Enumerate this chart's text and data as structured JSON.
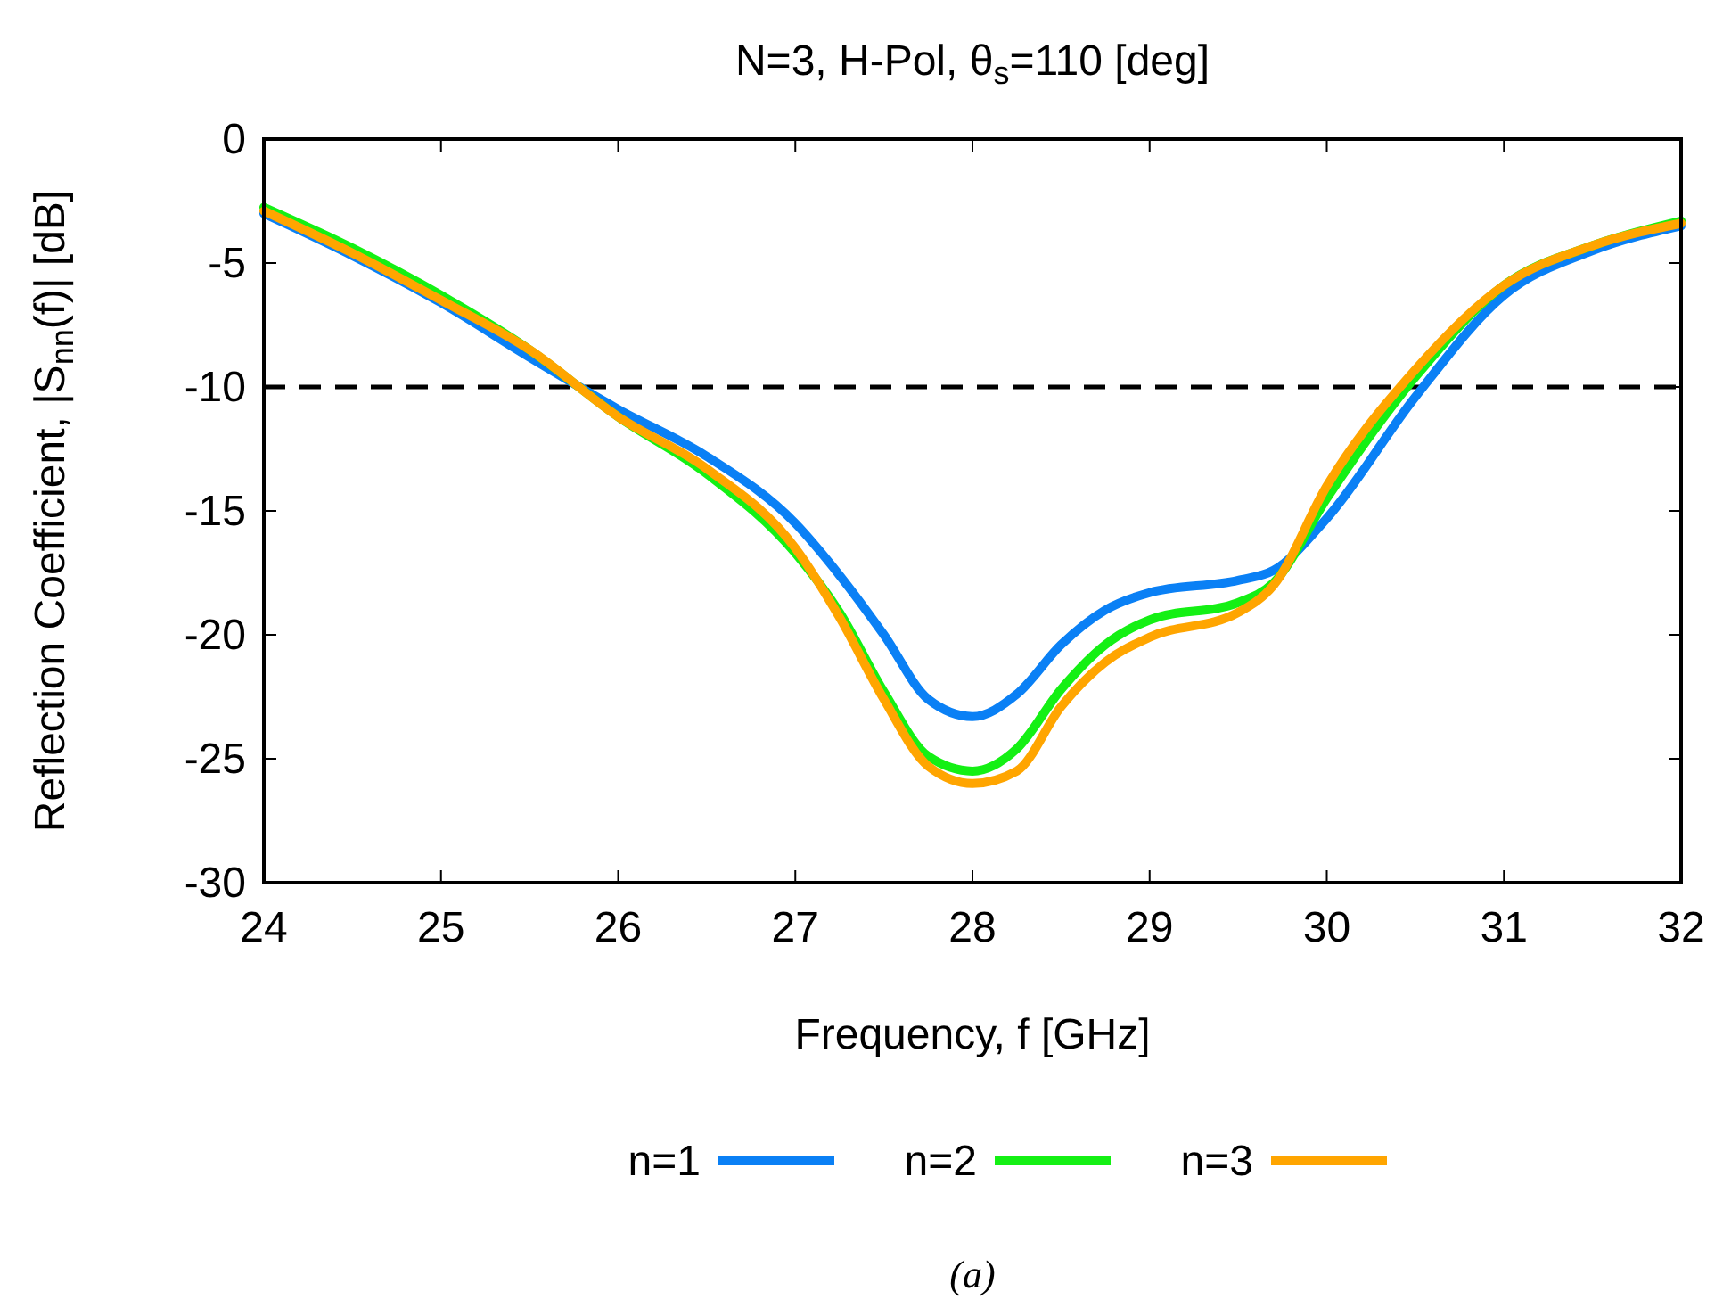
{
  "chart_data": {
    "type": "line",
    "title": "N=3, H-Pol, θ$_{s}$=110 [deg]",
    "xlabel": "Frequency, f [GHz]",
    "ylabel": "Reflection Coefficient, |S$_{nn}$(f)| [dB]",
    "xlim": [
      24,
      32
    ],
    "ylim": [
      -30,
      0
    ],
    "xticks": [
      24,
      25,
      26,
      27,
      28,
      29,
      30,
      31,
      32
    ],
    "yticks": [
      -30,
      -25,
      -20,
      -15,
      -10,
      -5,
      0
    ],
    "grid": false,
    "legend": "bottom",
    "line_style": "solid",
    "x": [
      24,
      24.5,
      25,
      25.5,
      26,
      26.5,
      27,
      27.25,
      27.5,
      27.75,
      28,
      28.25,
      28.5,
      28.75,
      29,
      29.5,
      29.7,
      30,
      30.5,
      31,
      31.5,
      32
    ],
    "series": [
      {
        "name": "n=1",
        "color": "#0a80f5",
        "values": [
          -3,
          -4.7,
          -6.6,
          -8.8,
          -10.9,
          -12.8,
          -15.5,
          -17.6,
          -20,
          -22.6,
          -23.3,
          -22.4,
          -20.4,
          -19,
          -18.3,
          -17.8,
          -17.4,
          -15.3,
          -10.4,
          -6.3,
          -4.5,
          -3.5
        ]
      },
      {
        "name": "n=2",
        "color": "#14f014",
        "values": [
          -2.75,
          -4.4,
          -6.3,
          -8.5,
          -11.2,
          -13.5,
          -16.7,
          -19.1,
          -22.3,
          -24.9,
          -25.5,
          -24.6,
          -22.2,
          -20.4,
          -19.4,
          -18.7,
          -17.9,
          -14.5,
          -9.6,
          -5.9,
          -4.3,
          -3.3
        ]
      },
      {
        "name": "n=3",
        "color": "#ffa500",
        "values": [
          -2.9,
          -4.6,
          -6.5,
          -8.5,
          -11.2,
          -13.3,
          -16.5,
          -19.3,
          -22.6,
          -25.3,
          -26,
          -25.5,
          -22.9,
          -21.1,
          -20.1,
          -19.1,
          -18,
          -14,
          -9.3,
          -5.9,
          -4.3,
          -3.4
        ]
      }
    ],
    "ref_lines": [
      {
        "axis": "y",
        "value": -10,
        "color": "#000000",
        "line_style": "dashed"
      }
    ],
    "annotations": [
      "(a)"
    ]
  }
}
